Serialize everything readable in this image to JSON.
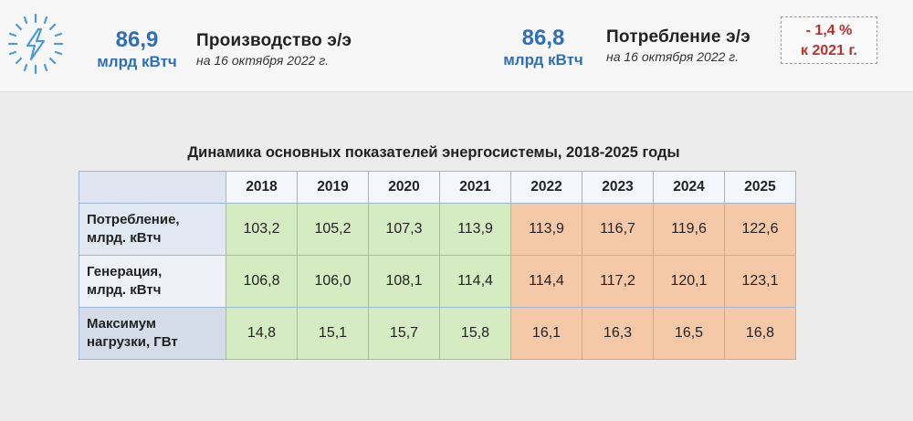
{
  "header": {
    "production": {
      "value": "86,9",
      "unit": "млрд кВтч",
      "title": "Производство э/э",
      "date": "на 16 октября 2022 г."
    },
    "consumption": {
      "value": "86,8",
      "unit": "млрд кВтч",
      "title": "Потребление э/э",
      "date": "на 16 октября 2022 г."
    },
    "change": {
      "value": "- 1,4 %",
      "label": "к 2021 г."
    },
    "icon": "lightning-icon"
  },
  "table": {
    "title": "Динамика основных показателей энергосистемы, 2018-2025 годы",
    "years": [
      "2018",
      "2019",
      "2020",
      "2021",
      "2022",
      "2023",
      "2024",
      "2025"
    ],
    "rows": [
      {
        "label_line1": "Потребление,",
        "label_line2": "млрд. кВтч",
        "values": [
          "103,2",
          "105,2",
          "107,3",
          "113,9",
          "113,9",
          "116,7",
          "119,6",
          "122,6"
        ]
      },
      {
        "label_line1": "Генерация,",
        "label_line2": "млрд. кВтч",
        "values": [
          "106,8",
          "106,0",
          "108,1",
          "114,4",
          "114,4",
          "117,2",
          "120,1",
          "123,1"
        ]
      },
      {
        "label_line1": "Максимум",
        "label_line2": "нагрузки, ГВт",
        "values": [
          "14,8",
          "15,1",
          "15,7",
          "15,8",
          "16,1",
          "16,3",
          "16,5",
          "16,8"
        ]
      }
    ],
    "colors": {
      "actual": "#d5ecc3",
      "forecast": "#f5c8a8"
    }
  }
}
